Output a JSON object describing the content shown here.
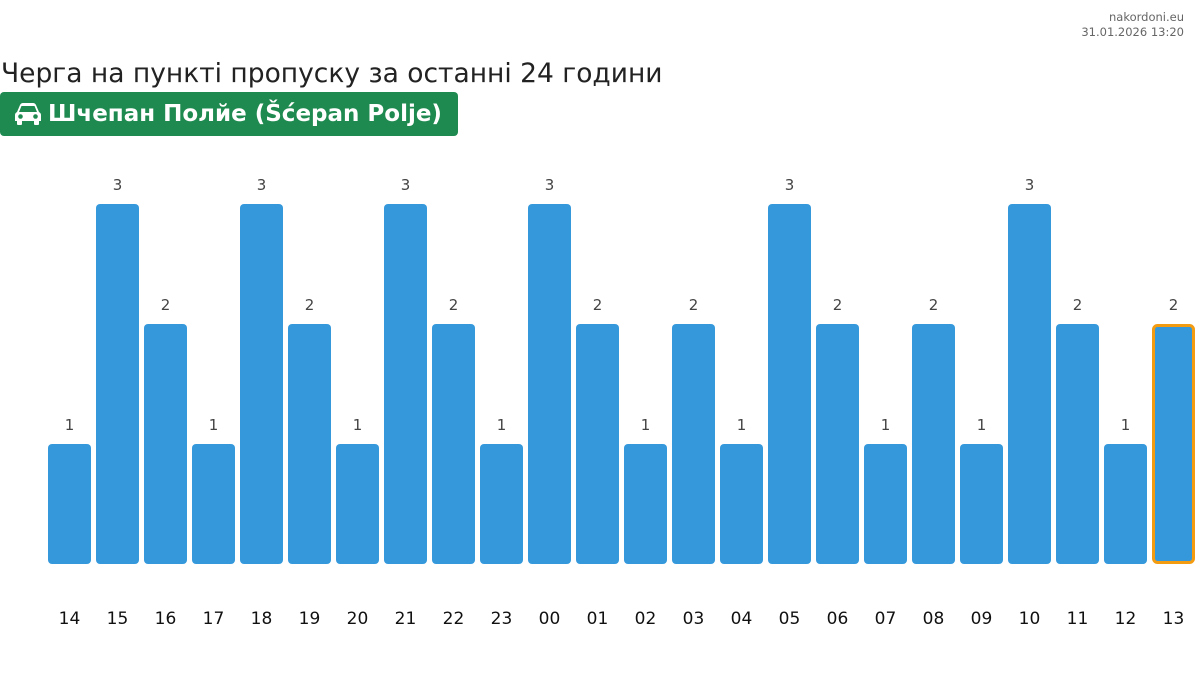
{
  "source": {
    "site": "nakordoni.eu",
    "timestamp": "31.01.2026 13:20"
  },
  "title": "Черга на пункті пропуску за останні 24 години",
  "checkpoint": {
    "name": "Шчепан Полйе (Šćepan Polje)",
    "icon": "car-icon",
    "color": "#1e8a4f"
  },
  "colors": {
    "bar": "#3498db",
    "highlight_border": "#f39c12",
    "label": "#444444",
    "tick": "#111111"
  },
  "chart_data": {
    "type": "bar",
    "categories": [
      "14",
      "15",
      "16",
      "17",
      "18",
      "19",
      "20",
      "21",
      "22",
      "23",
      "00",
      "01",
      "02",
      "03",
      "04",
      "05",
      "06",
      "07",
      "08",
      "09",
      "10",
      "11",
      "12",
      "13"
    ],
    "values": [
      1,
      3,
      2,
      1,
      3,
      2,
      1,
      3,
      2,
      1,
      3,
      2,
      1,
      2,
      1,
      3,
      2,
      1,
      2,
      1,
      3,
      2,
      1,
      2
    ],
    "highlight_index": 23,
    "ylim": [
      0,
      3
    ],
    "grid": false,
    "legend": "none",
    "title": "Черга на пункті пропуску за останні 24 години",
    "xlabel": "",
    "ylabel": ""
  }
}
